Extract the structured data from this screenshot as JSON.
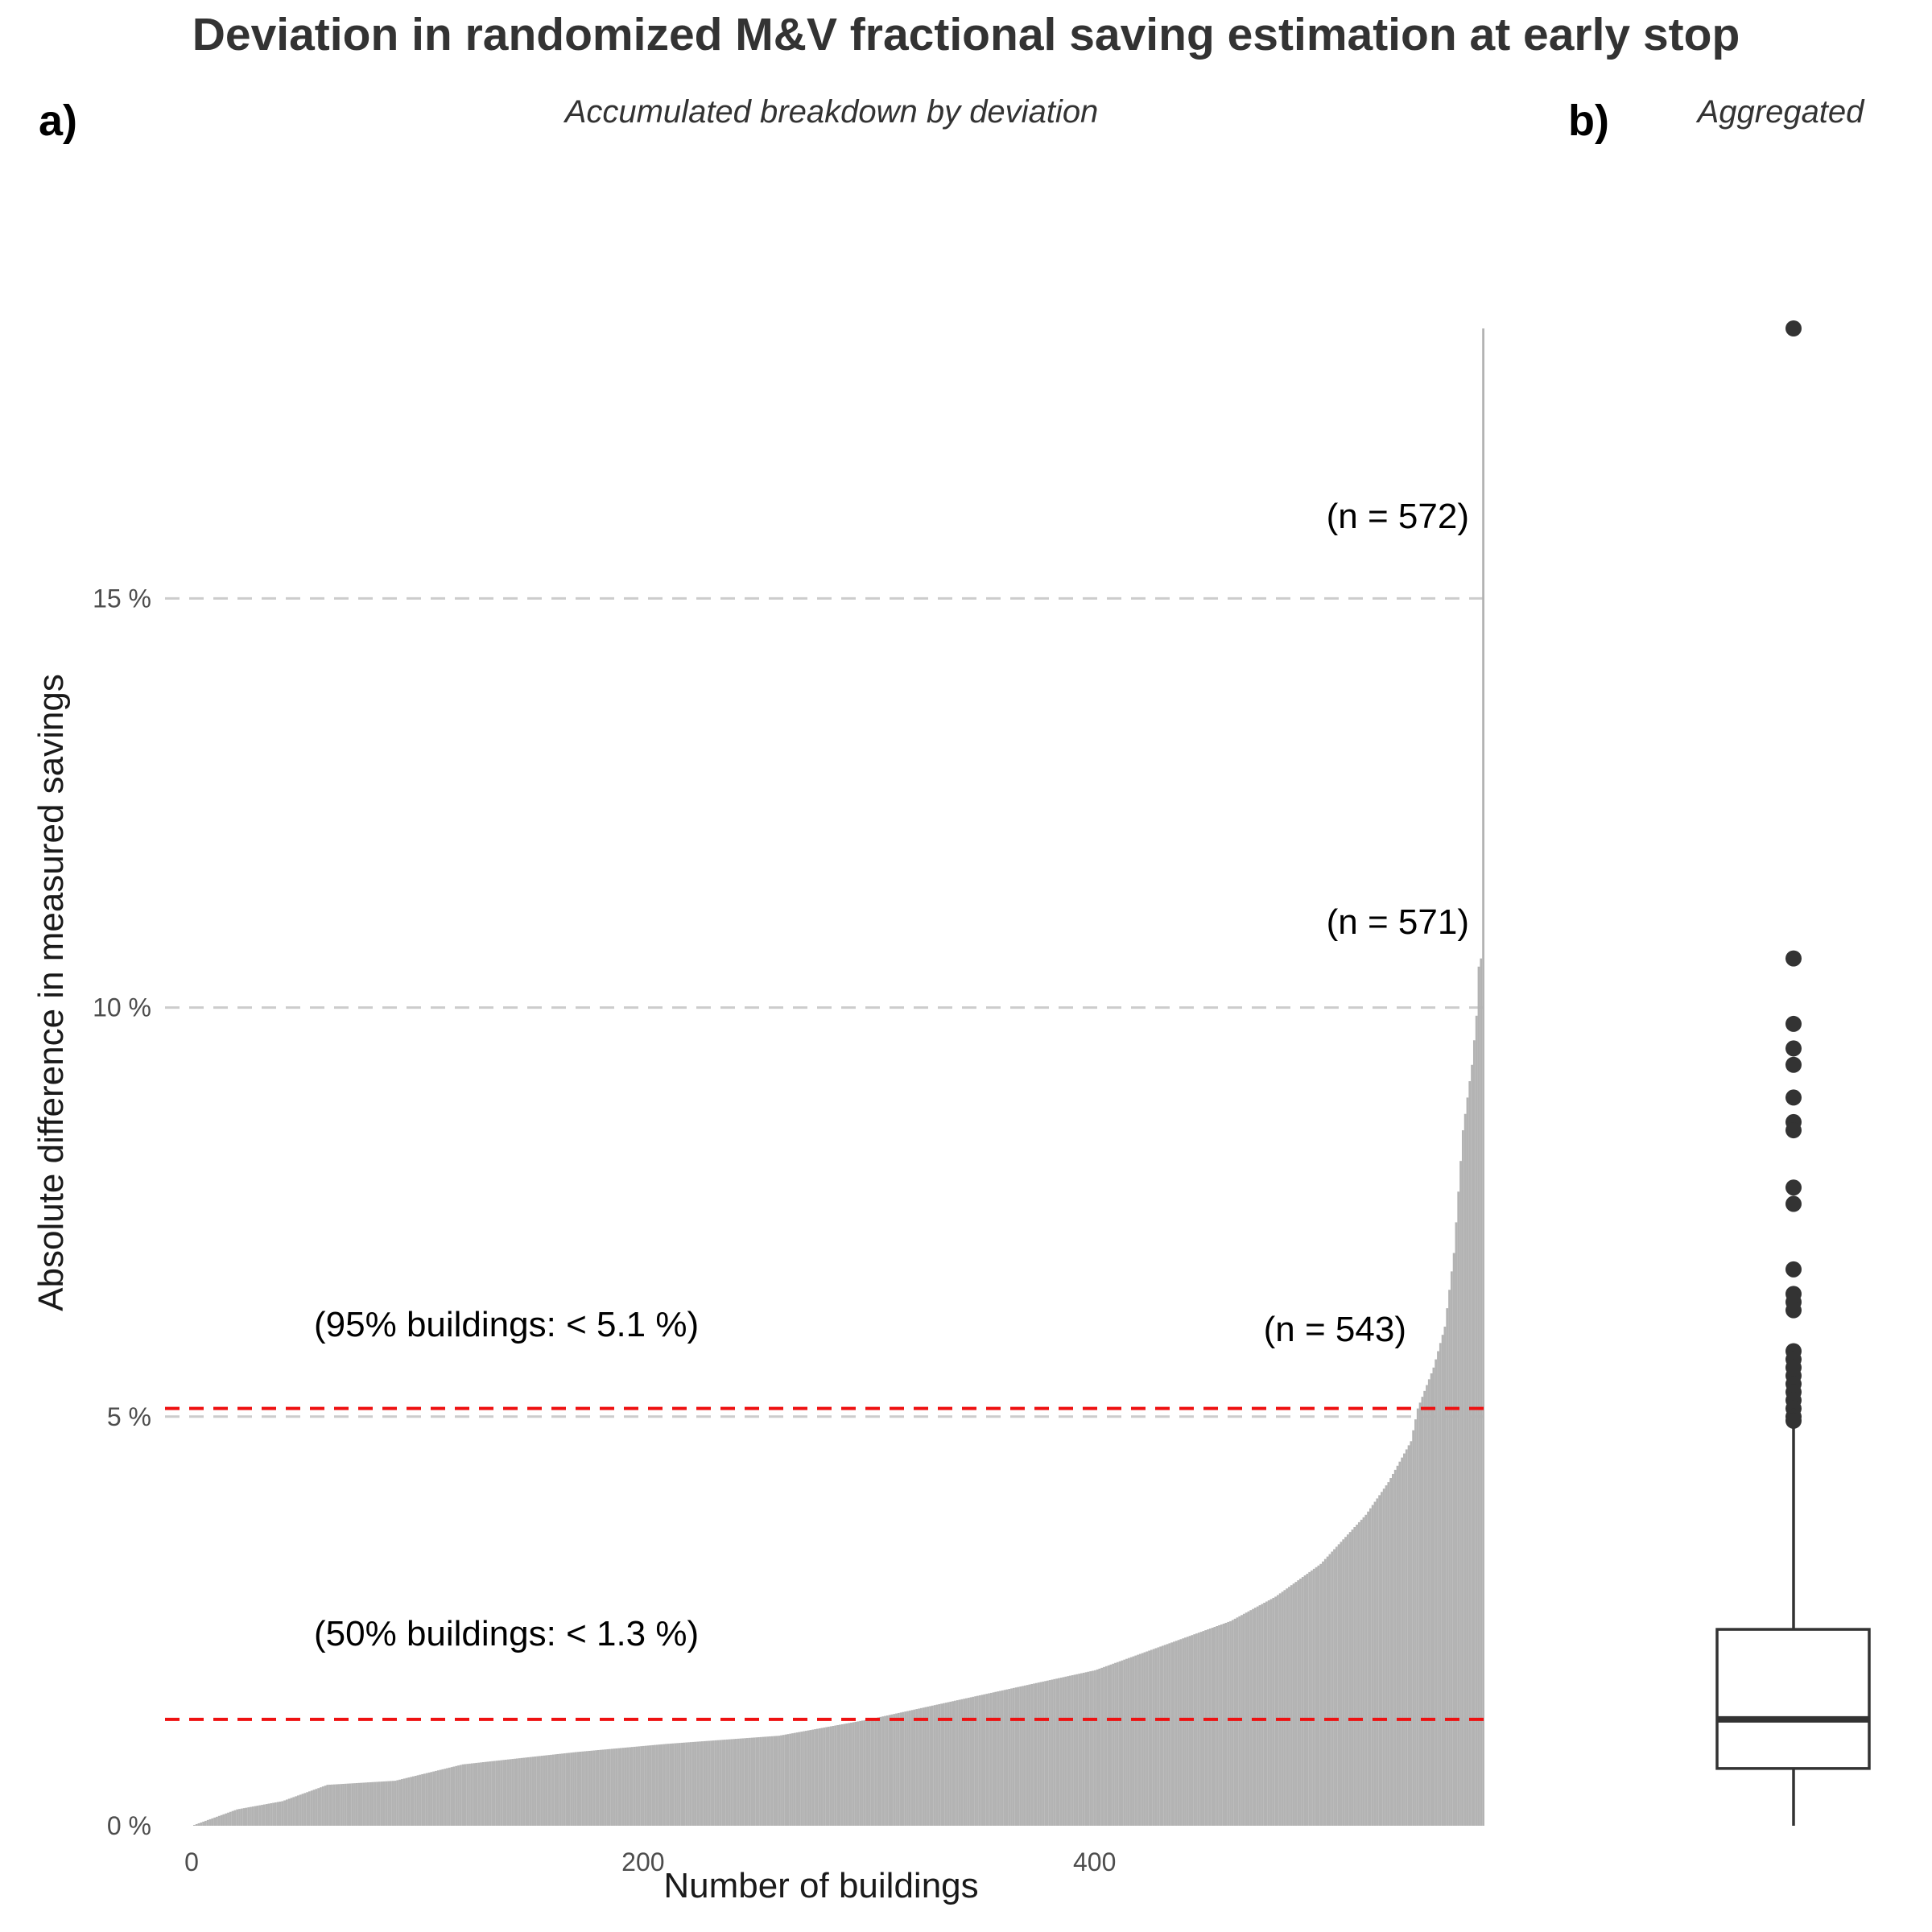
{
  "figure": {
    "title": "Deviation in randomized M&V fractional saving estimation at early stop"
  },
  "panel_a": {
    "tag": "a)",
    "subtitle": "Accumulated breakdown by deviation",
    "annotations": {
      "n572": "(n = 572)",
      "n571": "(n = 571)",
      "n543": "(n = 543)",
      "p95": "(95% buildings: < 5.1 %)",
      "p50": "(50% buildings: < 1.3 %)"
    }
  },
  "panel_b": {
    "tag": "b)",
    "subtitle": "Aggregated"
  },
  "colors": {
    "bar": "#b3b3b3",
    "threshold": "#ee1111",
    "grid": "#cccccc",
    "box": "#333333"
  },
  "chart_data": [
    {
      "type": "bar",
      "title": "Accumulated breakdown by deviation",
      "xlabel": "Number of buildings",
      "ylabel": "Absolute difference in measured savings",
      "n": 572,
      "xlim": [
        0,
        572
      ],
      "ylim": [
        0,
        18.3
      ],
      "x_ticks": [
        0,
        200,
        400
      ],
      "y_ticks": [
        0,
        5,
        10,
        15
      ],
      "y_tick_labels": [
        "0 %",
        "5 %",
        "10 %",
        "15 %"
      ],
      "grid": "horizontal dashed at 5, 10, 15",
      "values_description": "sorted ascending absolute deviation per building (%)",
      "anchors": [
        [
          0,
          0.0
        ],
        [
          10,
          0.1
        ],
        [
          20,
          0.2
        ],
        [
          40,
          0.3
        ],
        [
          60,
          0.5
        ],
        [
          90,
          0.55
        ],
        [
          120,
          0.75
        ],
        [
          170,
          0.9
        ],
        [
          210,
          1.0
        ],
        [
          260,
          1.1
        ],
        [
          300,
          1.3
        ],
        [
          350,
          1.6
        ],
        [
          400,
          1.9
        ],
        [
          440,
          2.3
        ],
        [
          460,
          2.5
        ],
        [
          480,
          2.8
        ],
        [
          500,
          3.2
        ],
        [
          520,
          3.8
        ],
        [
          530,
          4.2
        ],
        [
          540,
          4.7
        ],
        [
          543,
          5.1
        ],
        [
          550,
          5.6
        ],
        [
          555,
          6.1
        ],
        [
          559,
          7.0
        ],
        [
          563,
          8.5
        ],
        [
          567,
          9.3
        ],
        [
          569,
          9.9
        ],
        [
          570,
          10.5
        ],
        [
          571,
          10.6
        ],
        [
          572,
          18.3
        ]
      ],
      "reference_lines": [
        {
          "label": "95% buildings",
          "value": 5.1
        },
        {
          "label": "50% buildings",
          "value": 1.3
        }
      ]
    },
    {
      "type": "boxplot",
      "title": "Aggregated",
      "ylim": [
        0,
        18.3
      ],
      "whisker_low": 0.0,
      "q1": 0.7,
      "median": 1.3,
      "q3": 2.4,
      "whisker_high": 4.9,
      "outliers": [
        18.3,
        10.6,
        9.8,
        9.5,
        9.3,
        8.9,
        8.6,
        8.5,
        7.8,
        7.6,
        6.8,
        6.5,
        6.4,
        6.3,
        5.8,
        5.7,
        5.6,
        5.5,
        5.4,
        5.3,
        5.2,
        5.1,
        5.0,
        4.95
      ]
    }
  ]
}
